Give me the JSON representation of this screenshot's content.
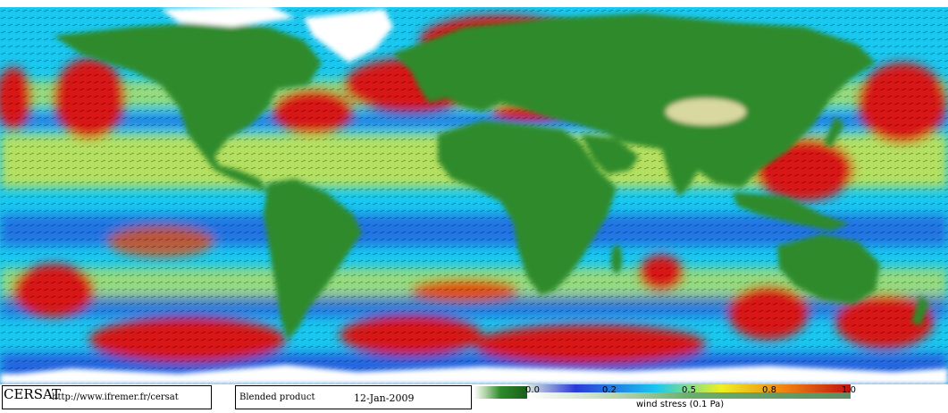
{
  "footer": {
    "brand": "CERSAT",
    "url": "http://www.ifremer.fr/cersat",
    "product": "Blended product",
    "date": "12-Jan-2009"
  },
  "colorbar": {
    "ticks": [
      "0.0",
      "0.2",
      "0.5",
      "0.8",
      "1.0"
    ],
    "label": "wind stress (0.1 Pa)",
    "range": [
      0.0,
      1.0
    ],
    "colors": [
      "#dce8dc",
      "#2a3ad8",
      "#19c8f0",
      "#f0f020",
      "#f08010",
      "#c01010"
    ]
  },
  "colors": {
    "land": "#2f8a2c",
    "land_dark": "#1f6e1f",
    "ice": "#ffffff",
    "desert": "#d8d8a0",
    "ocean_low": "#2a3ad8",
    "ocean_mid": "#19c8f0",
    "ocean_yellow": "#f0f020",
    "ocean_high": "#d81818"
  }
}
